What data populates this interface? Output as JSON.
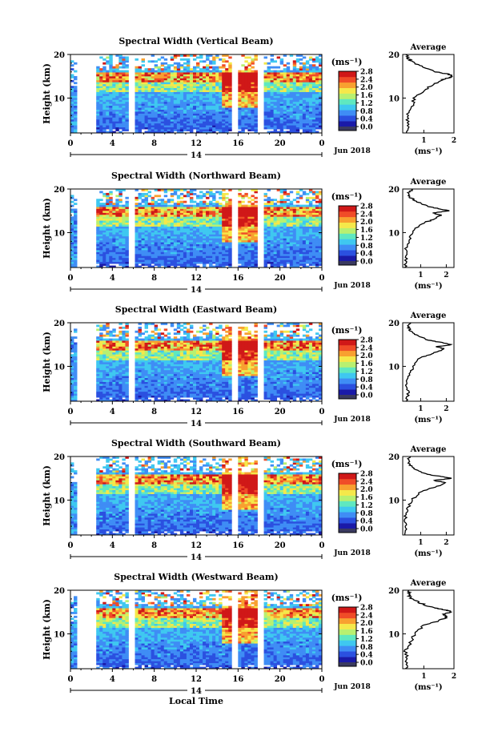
{
  "panels": [
    {
      "title": "Spectral Width (Vertical Beam)",
      "seed": 11
    },
    {
      "title": "Spectral Width (Northward Beam)",
      "seed": 23
    },
    {
      "title": "Spectral Width (Eastward Beam)",
      "seed": 37
    },
    {
      "title": "Spectral Width (Southward Beam)",
      "seed": 41
    },
    {
      "title": "Spectral Width (Westward Beam)",
      "seed": 53
    }
  ],
  "common": {
    "ylabel": "Height (km)",
    "yticks": [
      "20",
      "10"
    ],
    "xticks": [
      "0",
      "4",
      "8",
      "12",
      "16",
      "20",
      "0"
    ],
    "date_day": "14",
    "date_label": "Jun 2018",
    "unit": "(ms⁻¹)",
    "colorbar_ticks": [
      "2.8",
      "2.4",
      "2.0",
      "1.6",
      "1.2",
      "0.8",
      "0.4",
      "0.0"
    ],
    "avg_title": "Average",
    "avg_xticks": [
      "1",
      "2"
    ],
    "avg_xlabel": "(ms⁻¹)",
    "xlabel": "Local Time"
  },
  "colors": {
    "colormap": [
      "#1a1aa8",
      "#2b50e0",
      "#3f8df5",
      "#3fc8f0",
      "#5fe8c0",
      "#b8f070",
      "#f5e84a",
      "#f8a030",
      "#f04c28",
      "#d01818"
    ],
    "nodata": "#3a3a60"
  },
  "chart_data": [
    {
      "type": "heatmap",
      "title": "Spectral Width (Vertical Beam)",
      "xlabel": "",
      "ylabel": "Height (km)",
      "xlim": [
        0,
        24
      ],
      "ylim": [
        2,
        20
      ],
      "colorbar_range": [
        0.0,
        2.8
      ],
      "colorbar_unit": "ms-1",
      "data_gaps_hours": [
        [
          0.5,
          2.5
        ],
        [
          5.5,
          6.0
        ],
        [
          15.5,
          16.0
        ],
        [
          17.8,
          18.6
        ]
      ],
      "average_profile": {
        "x_label": "(ms-1)",
        "xlim": [
          0.3,
          2.0
        ],
        "height": [
          2,
          4,
          6,
          8,
          10,
          12,
          13,
          14,
          14.5,
          15,
          15.5,
          16,
          17,
          18,
          19,
          20
        ],
        "value": [
          0.45,
          0.5,
          0.45,
          0.6,
          0.7,
          1.05,
          1.3,
          1.55,
          1.75,
          1.95,
          1.8,
          1.4,
          1.0,
          0.7,
          0.5,
          0.4
        ]
      }
    },
    {
      "type": "heatmap",
      "title": "Spectral Width (Northward Beam)",
      "xlabel": "",
      "ylabel": "Height (km)",
      "xlim": [
        0,
        24
      ],
      "ylim": [
        2,
        20
      ],
      "colorbar_range": [
        0.0,
        2.8
      ],
      "colorbar_unit": "ms-1",
      "data_gaps_hours": [
        [
          0.5,
          2.5
        ],
        [
          5.5,
          6.0
        ],
        [
          15.5,
          16.0
        ],
        [
          17.8,
          18.6
        ]
      ],
      "average_profile": {
        "x_label": "(ms-1)",
        "xlim": [
          0.3,
          2.3
        ],
        "height": [
          2,
          4,
          6,
          8,
          10,
          12,
          13,
          14,
          14.5,
          15,
          15.5,
          16,
          17,
          18,
          19,
          20
        ],
        "value": [
          0.4,
          0.45,
          0.4,
          0.55,
          0.65,
          1.0,
          1.5,
          1.8,
          1.5,
          2.1,
          1.7,
          1.3,
          0.9,
          0.6,
          0.5,
          0.7
        ]
      }
    },
    {
      "type": "heatmap",
      "title": "Spectral Width (Eastward Beam)",
      "xlabel": "",
      "ylabel": "Height (km)",
      "xlim": [
        0,
        24
      ],
      "ylim": [
        2,
        20
      ],
      "colorbar_range": [
        0.0,
        2.8
      ],
      "colorbar_unit": "ms-1",
      "data_gaps_hours": [
        [
          0.5,
          2.5
        ],
        [
          5.5,
          6.0
        ],
        [
          15.5,
          16.0
        ],
        [
          17.8,
          18.6
        ]
      ],
      "average_profile": {
        "x_label": "(ms-1)",
        "xlim": [
          0.3,
          2.3
        ],
        "height": [
          2,
          4,
          6,
          8,
          10,
          12,
          13,
          14,
          14.5,
          15,
          15.5,
          16,
          17,
          18,
          19,
          20
        ],
        "value": [
          0.45,
          0.5,
          0.45,
          0.55,
          0.7,
          1.0,
          1.5,
          1.9,
          1.6,
          2.2,
          1.8,
          1.3,
          0.9,
          0.6,
          0.5,
          0.6
        ]
      }
    },
    {
      "type": "heatmap",
      "title": "Spectral Width (Southward Beam)",
      "xlabel": "",
      "ylabel": "Height (km)",
      "xlim": [
        0,
        24
      ],
      "ylim": [
        2,
        20
      ],
      "colorbar_range": [
        0.0,
        2.8
      ],
      "colorbar_unit": "ms-1",
      "data_gaps_hours": [
        [
          0.5,
          2.5
        ],
        [
          5.5,
          6.0
        ],
        [
          15.5,
          16.0
        ],
        [
          17.8,
          18.6
        ]
      ],
      "average_profile": {
        "x_label": "(ms-1)",
        "xlim": [
          0.3,
          2.3
        ],
        "height": [
          2,
          4,
          6,
          8,
          10,
          12,
          13,
          14,
          14.5,
          15,
          15.5,
          16,
          17,
          18,
          19,
          20
        ],
        "value": [
          0.4,
          0.45,
          0.4,
          0.5,
          0.65,
          1.0,
          1.6,
          2.0,
          1.5,
          2.2,
          1.7,
          1.2,
          0.8,
          0.6,
          0.5,
          0.6
        ]
      }
    },
    {
      "type": "heatmap",
      "title": "Spectral Width (Westward Beam)",
      "xlabel": "Local Time",
      "ylabel": "Height (km)",
      "xlim": [
        0,
        24
      ],
      "ylim": [
        2,
        20
      ],
      "colorbar_range": [
        0.0,
        2.8
      ],
      "colorbar_unit": "ms-1",
      "data_gaps_hours": [
        [
          0.5,
          2.5
        ],
        [
          5.5,
          6.0
        ],
        [
          15.5,
          16.0
        ],
        [
          17.8,
          18.6
        ]
      ],
      "average_profile": {
        "x_label": "(ms-1)",
        "xlim": [
          0.3,
          2.0
        ],
        "height": [
          2,
          4,
          6,
          8,
          10,
          12,
          13,
          14,
          14.5,
          15,
          15.5,
          16,
          17,
          18,
          19,
          20
        ],
        "value": [
          0.4,
          0.45,
          0.4,
          0.55,
          0.7,
          1.0,
          1.5,
          1.8,
          1.6,
          1.95,
          1.7,
          1.3,
          0.9,
          0.6,
          0.5,
          0.5
        ]
      }
    }
  ]
}
